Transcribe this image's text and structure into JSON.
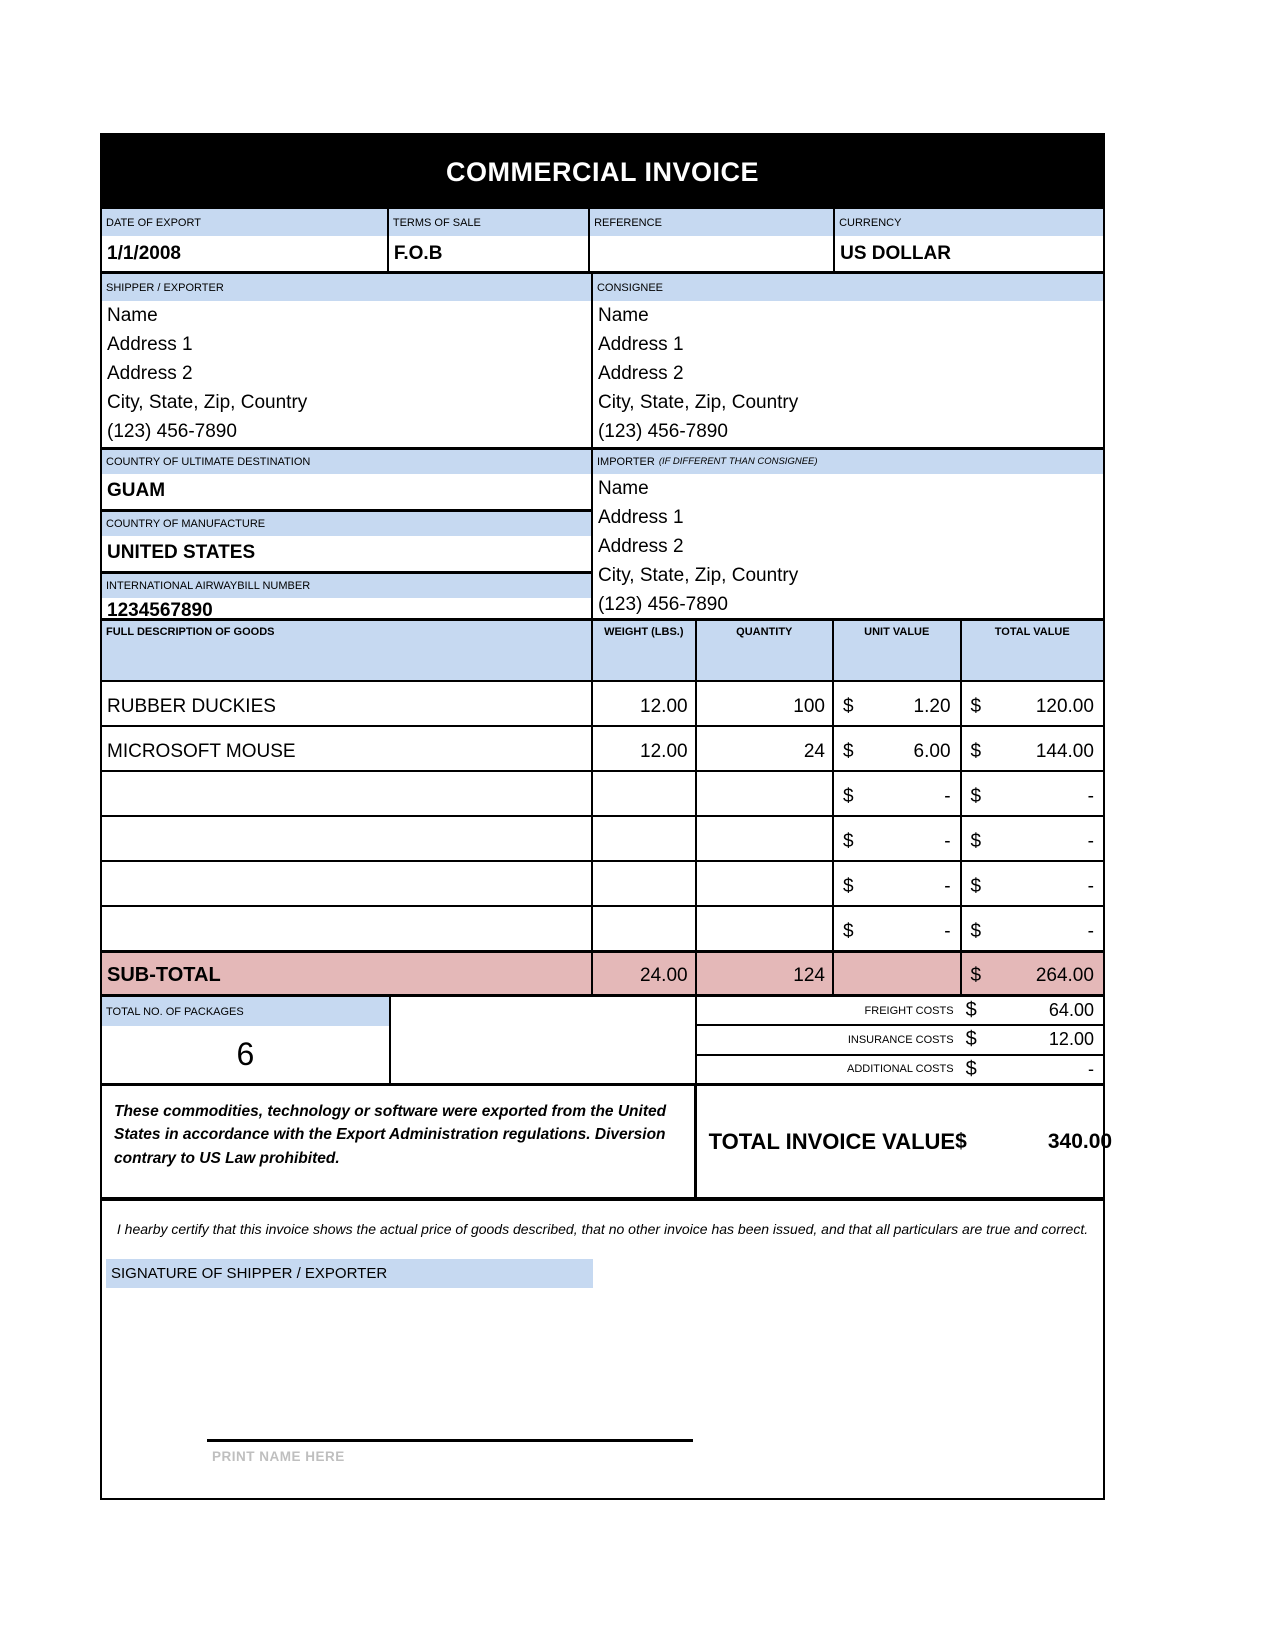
{
  "title": "COMMERCIAL INVOICE",
  "header": {
    "fields": [
      {
        "label": "DATE OF EXPORT",
        "value": "1/1/2008"
      },
      {
        "label": "TERMS OF SALE",
        "value": "F.O.B"
      },
      {
        "label": "REFERENCE",
        "value": ""
      },
      {
        "label": "CURRENCY",
        "value": "US DOLLAR"
      }
    ]
  },
  "shipper": {
    "label": "SHIPPER / EXPORTER",
    "lines": [
      "Name",
      "Address 1",
      "Address 2",
      "City, State, Zip, Country",
      "(123) 456-7890"
    ]
  },
  "consignee": {
    "label": "CONSIGNEE",
    "lines": [
      "Name",
      "Address 1",
      "Address 2",
      "City, State, Zip, Country",
      "(123) 456-7890"
    ]
  },
  "destination": {
    "label": "COUNTRY OF ULTIMATE DESTINATION",
    "value": "GUAM"
  },
  "manufacture": {
    "label": "COUNTRY OF MANUFACTURE",
    "value": "UNITED STATES"
  },
  "airwaybill": {
    "label": "INTERNATIONAL AIRWAYBILL NUMBER",
    "value": "1234567890"
  },
  "importer": {
    "label": "IMPORTER",
    "label_note": "(IF DIFFERENT THAN CONSIGNEE)",
    "lines": [
      "Name",
      "Address 1",
      "Address 2",
      "City, State, Zip, Country",
      "(123) 456-7890"
    ]
  },
  "goods": {
    "columns": [
      "FULL DESCRIPTION OF GOODS",
      "WEIGHT (LBS.)",
      "QUANTITY",
      "UNIT VALUE",
      "TOTAL VALUE"
    ],
    "rows": [
      {
        "description": "RUBBER DUCKIES",
        "weight": "12.00",
        "quantity": "100",
        "unit_currency": "$",
        "unit_amount": "1.20",
        "total_currency": "$",
        "total_amount": "120.00"
      },
      {
        "description": "MICROSOFT MOUSE",
        "weight": "12.00",
        "quantity": "24",
        "unit_currency": "$",
        "unit_amount": "6.00",
        "total_currency": "$",
        "total_amount": "144.00"
      },
      {
        "description": "",
        "weight": "",
        "quantity": "",
        "unit_currency": "$",
        "unit_amount": "-",
        "total_currency": "$",
        "total_amount": "-"
      },
      {
        "description": "",
        "weight": "",
        "quantity": "",
        "unit_currency": "$",
        "unit_amount": "-",
        "total_currency": "$",
        "total_amount": "-"
      },
      {
        "description": "",
        "weight": "",
        "quantity": "",
        "unit_currency": "$",
        "unit_amount": "-",
        "total_currency": "$",
        "total_amount": "-"
      },
      {
        "description": "",
        "weight": "",
        "quantity": "",
        "unit_currency": "$",
        "unit_amount": "-",
        "total_currency": "$",
        "total_amount": "-"
      }
    ],
    "subtotal": {
      "label": "SUB-TOTAL",
      "weight": "24.00",
      "quantity": "124",
      "total_currency": "$",
      "total_amount": "264.00"
    }
  },
  "packages": {
    "label": "TOTAL NO. OF PACKAGES",
    "value": "6"
  },
  "costs": [
    {
      "label": "FREIGHT COSTS",
      "currency": "$",
      "value": "64.00"
    },
    {
      "label": "INSURANCE COSTS",
      "currency": "$",
      "value": "12.00"
    },
    {
      "label": "ADDITIONAL COSTS",
      "currency": "$",
      "value": "-"
    }
  ],
  "export_statement": "These commodities, technology or software were exported from the United States in accordance with the Export Administration regulations.  Diversion contrary to US Law prohibited.",
  "total_invoice": {
    "label": "TOTAL INVOICE VALUE",
    "currency": "$",
    "value": "340.00"
  },
  "certification": "I hearby certify that this invoice shows the actual price of goods described, that no other invoice has been issued, and that all particulars are true and correct.",
  "signature": {
    "label": "SIGNATURE OF SHIPPER / EXPORTER",
    "print_name_placeholder": "PRINT NAME HERE"
  },
  "colors": {
    "field_label_bg": "#c6d9f1",
    "subtotal_bg": "#e4b8b8",
    "title_bg": "#000000",
    "print_name_text": "#bfbfbf"
  }
}
